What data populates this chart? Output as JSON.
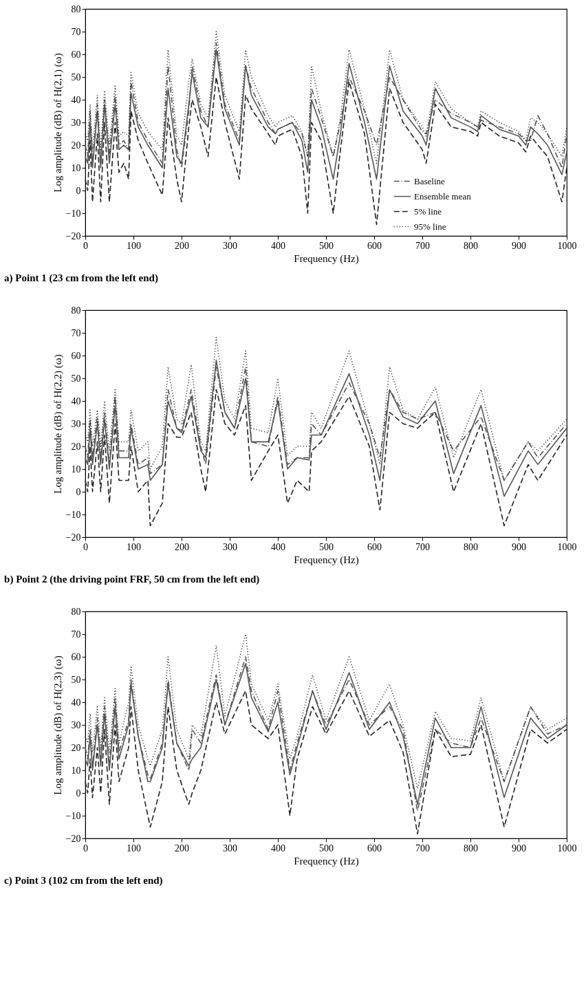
{
  "chart_data": [
    {
      "type": "line",
      "title": "a) Point 1 (23 cm from the left end)",
      "xlabel": "Frequency (Hz)",
      "ylabel": "Log amplitude (dB) of H(2,1) (ω)",
      "xlim": [
        0,
        1000
      ],
      "ylim": [
        -20,
        80
      ],
      "xticks": [
        0,
        100,
        200,
        300,
        400,
        500,
        600,
        700,
        800,
        900,
        1000
      ],
      "yticks": [
        -20,
        -10,
        0,
        10,
        20,
        30,
        40,
        50,
        60,
        70,
        80
      ],
      "grid": false,
      "legend": "bottom right",
      "x": [
        0,
        5,
        10,
        15,
        25,
        32,
        40,
        50,
        62,
        70,
        80,
        90,
        95,
        110,
        130,
        160,
        172,
        190,
        200,
        215,
        222,
        240,
        255,
        272,
        290,
        320,
        333,
        345,
        380,
        395,
        400,
        430,
        450,
        462,
        470,
        490,
        515,
        530,
        548,
        580,
        605,
        632,
        660,
        700,
        708,
        727,
        760,
        800,
        815,
        822,
        860,
        900,
        915,
        925,
        940,
        960,
        990,
        1000
      ],
      "series": [
        {
          "name": "Baseline",
          "color": "#555555",
          "line_style": "dashdot",
          "values": [
            20,
            15,
            35,
            12,
            38,
            12,
            40,
            15,
            42,
            20,
            22,
            18,
            48,
            30,
            22,
            12,
            55,
            18,
            10,
            35,
            55,
            35,
            28,
            65,
            38,
            22,
            55,
            45,
            30,
            25,
            27,
            30,
            25,
            15,
            45,
            32,
            15,
            30,
            50,
            35,
            20,
            50,
            40,
            26,
            25,
            40,
            34,
            30,
            28,
            31,
            28,
            25,
            22,
            22,
            33,
            25,
            10,
            25
          ]
        },
        {
          "name": "Ensemble mean",
          "color": "#555555",
          "line_style": "solid",
          "values": [
            15,
            12,
            30,
            10,
            35,
            10,
            38,
            12,
            38,
            18,
            20,
            18,
            43,
            28,
            20,
            10,
            45,
            15,
            12,
            38,
            52,
            32,
            28,
            62,
            36,
            20,
            55,
            42,
            28,
            25,
            27,
            30,
            22,
            8,
            40,
            28,
            5,
            25,
            56,
            30,
            5,
            55,
            35,
            24,
            20,
            45,
            32,
            28,
            26,
            33,
            27,
            24,
            20,
            28,
            25,
            20,
            7,
            17
          ]
        },
        {
          "name": "5% line",
          "color": "#222222",
          "line_style": "dashed",
          "values": [
            5,
            0,
            22,
            -5,
            25,
            -5,
            30,
            -5,
            30,
            8,
            12,
            5,
            35,
            22,
            12,
            -2,
            32,
            5,
            -5,
            28,
            40,
            28,
            15,
            50,
            30,
            5,
            42,
            36,
            25,
            20,
            24,
            27,
            15,
            -10,
            30,
            22,
            -10,
            18,
            48,
            25,
            -15,
            45,
            30,
            18,
            12,
            38,
            28,
            26,
            24,
            30,
            24,
            21,
            17,
            24,
            20,
            15,
            -5,
            10
          ]
        },
        {
          "name": "95% line",
          "color": "#222222",
          "line_style": "dotted",
          "values": [
            25,
            22,
            38,
            18,
            42,
            18,
            44,
            20,
            46,
            24,
            26,
            24,
            52,
            34,
            26,
            18,
            62,
            24,
            20,
            48,
            58,
            38,
            32,
            70,
            42,
            26,
            62,
            50,
            33,
            28,
            30,
            33,
            26,
            15,
            55,
            35,
            15,
            32,
            62,
            36,
            12,
            62,
            40,
            28,
            24,
            48,
            36,
            30,
            28,
            35,
            30,
            26,
            22,
            32,
            30,
            25,
            15,
            28
          ]
        }
      ]
    },
    {
      "type": "line",
      "title": "b) Point 2 (the driving point FRF, 50 cm from the left end)",
      "xlabel": "Frequency (Hz)",
      "ylabel": "Log amplitude (dB) of H(2,2) (ω)",
      "xlim": [
        0,
        1000
      ],
      "ylim": [
        -20,
        80
      ],
      "xticks": [
        0,
        100,
        200,
        300,
        400,
        500,
        600,
        700,
        800,
        900,
        1000
      ],
      "yticks": [
        -20,
        -10,
        0,
        10,
        20,
        30,
        40,
        50,
        60,
        70,
        80
      ],
      "grid": false,
      "legend": false,
      "x": [
        0,
        5,
        10,
        15,
        25,
        32,
        40,
        50,
        62,
        70,
        90,
        95,
        110,
        130,
        135,
        160,
        172,
        190,
        200,
        220,
        240,
        250,
        272,
        290,
        310,
        333,
        345,
        380,
        400,
        420,
        440,
        465,
        470,
        490,
        548,
        590,
        612,
        632,
        660,
        690,
        727,
        765,
        822,
        870,
        920,
        940,
        1000
      ],
      "series": [
        {
          "color": "#555555",
          "line_style": "dashdot",
          "values": [
            20,
            15,
            32,
            15,
            33,
            15,
            35,
            12,
            42,
            18,
            18,
            30,
            12,
            15,
            8,
            12,
            45,
            28,
            27,
            45,
            20,
            12,
            55,
            35,
            28,
            55,
            22,
            20,
            42,
            12,
            15,
            15,
            30,
            25,
            48,
            30,
            15,
            45,
            35,
            32,
            35,
            18,
            33,
            5,
            22,
            15,
            30
          ]
        },
        {
          "color": "#555555",
          "line_style": "solid",
          "values": [
            15,
            12,
            28,
            12,
            30,
            12,
            32,
            10,
            38,
            15,
            15,
            28,
            10,
            12,
            5,
            12,
            40,
            28,
            26,
            42,
            18,
            15,
            58,
            35,
            28,
            50,
            22,
            22,
            40,
            10,
            15,
            14,
            25,
            25,
            52,
            25,
            5,
            45,
            33,
            30,
            40,
            8,
            38,
            -2,
            18,
            12,
            28
          ]
        },
        {
          "color": "#222222",
          "line_style": "dashed",
          "values": [
            5,
            0,
            20,
            0,
            22,
            0,
            25,
            -5,
            30,
            5,
            5,
            20,
            0,
            5,
            -15,
            -5,
            30,
            24,
            24,
            35,
            10,
            0,
            45,
            30,
            25,
            38,
            5,
            18,
            25,
            -5,
            5,
            0,
            18,
            22,
            42,
            20,
            -8,
            35,
            30,
            28,
            35,
            0,
            30,
            -15,
            12,
            5,
            25
          ]
        },
        {
          "color": "#222222",
          "line_style": "dotted",
          "values": [
            25,
            22,
            36,
            20,
            36,
            20,
            40,
            18,
            45,
            22,
            22,
            36,
            18,
            22,
            10,
            20,
            55,
            32,
            30,
            56,
            22,
            18,
            68,
            40,
            32,
            62,
            28,
            26,
            50,
            16,
            20,
            20,
            35,
            28,
            62,
            30,
            12,
            55,
            36,
            32,
            46,
            15,
            45,
            5,
            22,
            18,
            32
          ]
        }
      ]
    },
    {
      "type": "line",
      "title": "c) Point 3 (102 cm from the left end)",
      "xlabel": "Frequency (Hz)",
      "ylabel": "Log amplitude (dB) of H(2,3) (ω)",
      "xlim": [
        0,
        1000
      ],
      "ylim": [
        -20,
        80
      ],
      "xticks": [
        0,
        100,
        200,
        300,
        400,
        500,
        600,
        700,
        800,
        900,
        1000
      ],
      "yticks": [
        -20,
        -10,
        0,
        10,
        20,
        30,
        40,
        50,
        60,
        70,
        80
      ],
      "grid": false,
      "legend": false,
      "x": [
        0,
        5,
        10,
        15,
        25,
        32,
        40,
        50,
        62,
        70,
        90,
        95,
        110,
        130,
        135,
        160,
        172,
        190,
        215,
        222,
        240,
        272,
        290,
        333,
        345,
        380,
        400,
        425,
        440,
        472,
        500,
        548,
        590,
        632,
        660,
        690,
        727,
        760,
        800,
        822,
        870,
        925,
        960,
        1000
      ],
      "series": [
        {
          "color": "#555555",
          "line_style": "dashdot",
          "values": [
            20,
            15,
            28,
            12,
            33,
            15,
            38,
            12,
            42,
            18,
            32,
            50,
            25,
            8,
            6,
            22,
            50,
            22,
            10,
            28,
            22,
            52,
            30,
            60,
            45,
            28,
            45,
            10,
            22,
            45,
            30,
            50,
            30,
            38,
            28,
            -8,
            28,
            22,
            20,
            33,
            5,
            38,
            26,
            30
          ]
        },
        {
          "color": "#555555",
          "line_style": "solid",
          "values": [
            15,
            12,
            25,
            10,
            30,
            12,
            35,
            10,
            38,
            15,
            30,
            48,
            25,
            5,
            5,
            20,
            48,
            22,
            12,
            15,
            20,
            50,
            30,
            57,
            42,
            27,
            40,
            8,
            20,
            45,
            28,
            53,
            28,
            40,
            25,
            -5,
            33,
            20,
            20,
            38,
            -2,
            33,
            24,
            30
          ]
        },
        {
          "color": "#222222",
          "line_style": "dashed",
          "values": [
            5,
            0,
            15,
            -2,
            20,
            0,
            28,
            -5,
            30,
            5,
            20,
            38,
            10,
            -10,
            -15,
            5,
            38,
            10,
            -5,
            0,
            10,
            40,
            26,
            45,
            30,
            24,
            30,
            -10,
            15,
            38,
            26,
            45,
            25,
            32,
            18,
            -18,
            28,
            16,
            17,
            30,
            -15,
            28,
            22,
            28
          ]
        },
        {
          "color": "#222222",
          "line_style": "dotted",
          "values": [
            25,
            22,
            35,
            18,
            38,
            20,
            42,
            18,
            46,
            22,
            40,
            56,
            30,
            15,
            12,
            28,
            60,
            28,
            15,
            30,
            25,
            65,
            34,
            70,
            48,
            32,
            48,
            15,
            25,
            52,
            32,
            60,
            32,
            48,
            30,
            2,
            36,
            24,
            23,
            42,
            5,
            38,
            28,
            33
          ]
        }
      ]
    }
  ]
}
